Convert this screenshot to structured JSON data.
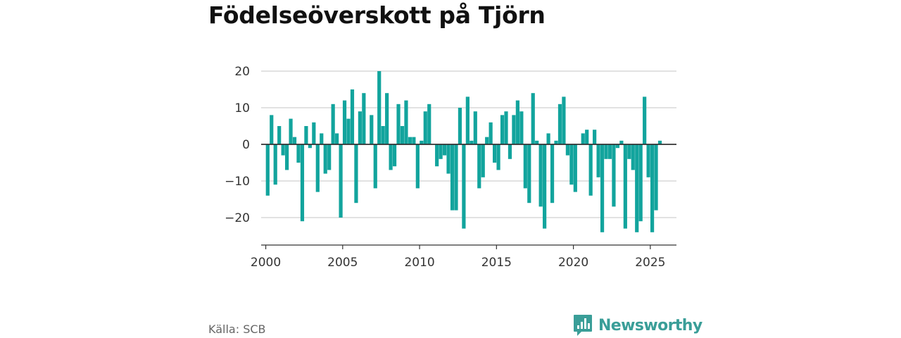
{
  "chart_data": {
    "type": "bar",
    "title": "Födelseöverskott på Tjörn",
    "xlabel": "",
    "ylabel": "",
    "ylim": [
      -26,
      20
    ],
    "yticks": [
      20,
      10,
      0,
      -10,
      -20
    ],
    "ytick_labels": [
      "20",
      "10",
      "0",
      "−10",
      "−20"
    ],
    "xlim": [
      1999.7,
      2026.7
    ],
    "xticks": [
      2000,
      2005,
      2010,
      2015,
      2020,
      2025
    ],
    "xtick_labels": [
      "2000",
      "2005",
      "2010",
      "2015",
      "2020",
      "2025"
    ],
    "grid": true,
    "color": "#12a49d",
    "series": [
      {
        "x": [
          2000.125,
          2000.375,
          2000.625,
          2000.875,
          2001.125,
          2001.375,
          2001.625,
          2001.875,
          2002.125,
          2002.375,
          2002.625,
          2002.875,
          2003.125,
          2003.375,
          2003.625,
          2003.875,
          2004.125,
          2004.375,
          2004.625,
          2004.875,
          2005.125,
          2005.375,
          2005.625,
          2005.875,
          2006.125,
          2006.375,
          2006.625,
          2006.875,
          2007.125,
          2007.375,
          2007.625,
          2007.875,
          2008.125,
          2008.375,
          2008.625,
          2008.875,
          2009.125,
          2009.375,
          2009.625,
          2009.875,
          2010.125,
          2010.375,
          2010.625,
          2010.875,
          2011.125,
          2011.375,
          2011.625,
          2011.875,
          2012.125,
          2012.375,
          2012.625,
          2012.875,
          2013.125,
          2013.375,
          2013.625,
          2013.875,
          2014.125,
          2014.375,
          2014.625,
          2014.875,
          2015.125,
          2015.375,
          2015.625,
          2015.875,
          2016.125,
          2016.375,
          2016.625,
          2016.875,
          2017.125,
          2017.375,
          2017.625,
          2017.875,
          2018.125,
          2018.375,
          2018.625,
          2018.875,
          2019.125,
          2019.375,
          2019.625,
          2019.875,
          2020.125,
          2020.375,
          2020.625,
          2020.875,
          2021.125,
          2021.375,
          2021.625,
          2021.875,
          2022.125,
          2022.375,
          2022.625,
          2022.875,
          2023.125,
          2023.375,
          2023.625,
          2023.875,
          2024.125,
          2024.375,
          2024.625,
          2024.875,
          2025.125,
          2025.375,
          2025.625
        ],
        "values": [
          -14,
          8,
          -11,
          5,
          -3,
          -7,
          7,
          2,
          -5,
          -21,
          5,
          -1,
          6,
          -13,
          3,
          -8,
          -7,
          11,
          3,
          -20,
          12,
          7,
          15,
          -16,
          9,
          14,
          0,
          8,
          -12,
          20,
          5,
          14,
          -7,
          -6,
          11,
          5,
          12,
          2,
          2,
          -12,
          1,
          9,
          11,
          0,
          -6,
          -4,
          -3,
          -8,
          -18,
          -18,
          10,
          -23,
          13,
          1,
          9,
          -12,
          -9,
          2,
          6,
          -5,
          -7,
          8,
          9,
          -4,
          8,
          12,
          9,
          -12,
          -16,
          14,
          1,
          -17,
          -23,
          3,
          -16,
          1,
          11,
          13,
          -3,
          -11,
          -13,
          0,
          3,
          4,
          -14,
          4,
          -9,
          -24,
          -4,
          -4,
          -17,
          -1,
          1,
          -23,
          -4,
          -7,
          -24,
          -21,
          13,
          -9,
          -24,
          -18,
          1
        ]
      }
    ]
  },
  "footer": {
    "source": "Källa: SCB",
    "brand": "Newsworthy",
    "brand_color": "#3a9e98"
  }
}
